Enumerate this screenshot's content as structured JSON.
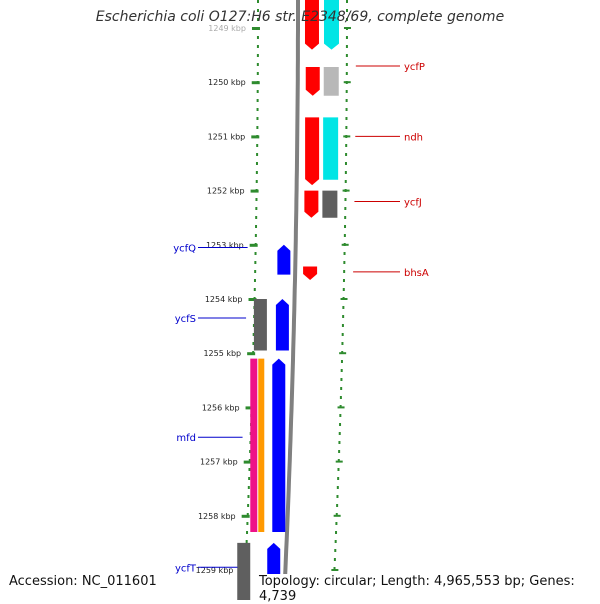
{
  "title": "Escherichia coli O127:H6 str. E2348/69, complete genome",
  "footer": {
    "accession": "Accession: NC_011601",
    "topology": "Topology: circular; Length: 4,965,553 bp; Genes: 4,739"
  },
  "colors": {
    "ruler": "#2e8b2e",
    "backbone": "#808080",
    "forward_label": "#cc0000",
    "reverse_label": "#0000cc",
    "red": "#ff0000",
    "cyan": "#00e5e5",
    "grey": "#5f5f5f",
    "lightgrey": "#b8b8b8",
    "blue": "#0000ff",
    "magenta": "#ee1188",
    "orange": "#ff9900"
  },
  "ruler": {
    "unit": "kbp",
    "tick_labels": [
      "1249 kbp",
      "1250 kbp",
      "1251 kbp",
      "1252 kbp",
      "1253 kbp",
      "1254 kbp",
      "1255 kbp",
      "1256 kbp",
      "1257 kbp",
      "1258 kbp",
      "1259 kbp"
    ],
    "tick_positions_kbp": [
      1249,
      1250,
      1251,
      1252,
      1253,
      1254,
      1255,
      1256,
      1257,
      1258,
      1259
    ]
  },
  "genes": [
    {
      "name": "ycfP",
      "strand": "forward",
      "start_kbp": 1249.72,
      "end_kbp": 1250.25,
      "track": "red"
    },
    {
      "name": "ndh",
      "strand": "forward",
      "start_kbp": 1250.65,
      "end_kbp": 1251.9,
      "track": "red"
    },
    {
      "name": "ycfJ",
      "strand": "forward",
      "start_kbp": 1252.0,
      "end_kbp": 1252.5,
      "track": "red"
    },
    {
      "name": "bhsA",
      "strand": "forward",
      "start_kbp": 1253.4,
      "end_kbp": 1253.65,
      "track": "red"
    },
    {
      "name": "ycfQ",
      "strand": "reverse",
      "start_kbp": 1253.0,
      "end_kbp": 1253.55,
      "track": "blue"
    },
    {
      "name": "ycfS",
      "strand": "reverse",
      "start_kbp": 1254.0,
      "end_kbp": 1254.95,
      "track": "blue"
    },
    {
      "name": "mfd",
      "strand": "reverse",
      "start_kbp": 1255.1,
      "end_kbp": 1258.3,
      "track": "blue"
    },
    {
      "name": "ycfT",
      "strand": "reverse",
      "start_kbp": 1258.5,
      "end_kbp": 1259.6,
      "track": "blue"
    }
  ],
  "gene_labels": [
    {
      "text": "ycfP",
      "strand": "forward",
      "pos_kbp": 1249.7
    },
    {
      "text": "ndh",
      "strand": "forward",
      "pos_kbp": 1251.0
    },
    {
      "text": "ycfJ",
      "strand": "forward",
      "pos_kbp": 1252.2
    },
    {
      "text": "bhsA",
      "strand": "forward",
      "pos_kbp": 1253.5
    },
    {
      "text": "ycfQ",
      "strand": "reverse",
      "pos_kbp": 1253.05
    },
    {
      "text": "ycfS",
      "strand": "reverse",
      "pos_kbp": 1254.35
    },
    {
      "text": "mfd",
      "strand": "reverse",
      "pos_kbp": 1256.55
    },
    {
      "text": "ycfT",
      "strand": "reverse",
      "pos_kbp": 1258.95
    }
  ]
}
